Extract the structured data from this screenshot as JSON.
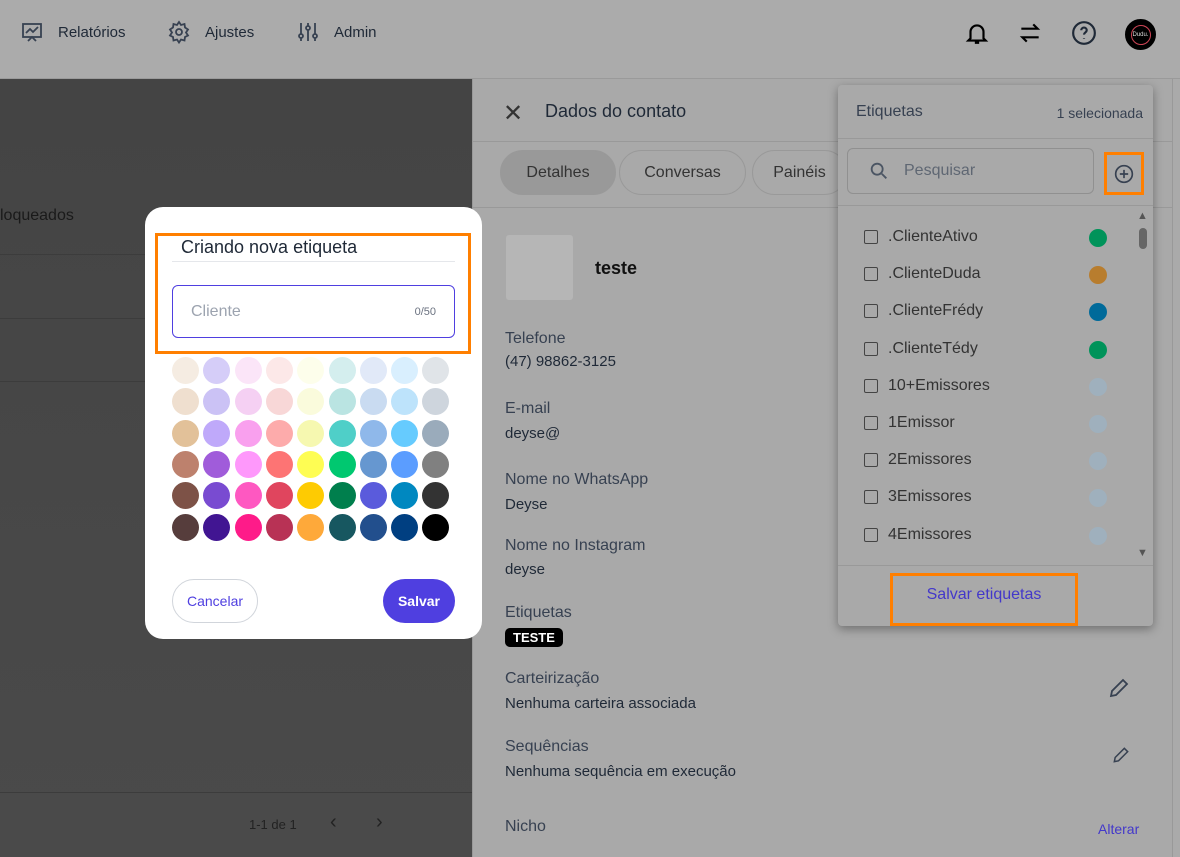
{
  "topbar": {
    "nav": [
      {
        "label": "Relatórios",
        "icon": "presentation-chart-icon"
      },
      {
        "label": "Ajustes",
        "icon": "gear-icon"
      },
      {
        "label": "Admin",
        "icon": "sliders-icon"
      }
    ],
    "avatar_text": "Dudu."
  },
  "background_list": {
    "column_text": "loqueados",
    "pagination": "1-1 de 1"
  },
  "contact_panel": {
    "title": "Dados do contato",
    "tabs": [
      {
        "label": "Detalhes",
        "active": true
      },
      {
        "label": "Conversas"
      },
      {
        "label": "Painéis"
      }
    ],
    "name": "teste",
    "fields": {
      "phone_label": "Telefone",
      "phone": "(47) 98862-3125",
      "email_label": "E-mail",
      "email": "deyse@",
      "whatsapp_label": "Nome no WhatsApp",
      "whatsapp": "Deyse",
      "instagram_label": "Nome no Instagram",
      "instagram": "deyse",
      "tags_label": "Etiquetas",
      "tag": "TESTE",
      "wallet_label": "Carteirização",
      "wallet": "Nenhuma carteira associada",
      "seq_label": "Sequências",
      "seq": "Nenhuma sequência em execução",
      "niche_label": "Nicho",
      "niche_action": "Alterar"
    }
  },
  "tags_dropdown": {
    "title": "Etiquetas",
    "selected_count": "1 selecionada",
    "search_placeholder": "Pesquisar",
    "save_label": "Salvar etiquetas",
    "items": [
      {
        "label": ".ClienteAtivo",
        "color": "#00935a"
      },
      {
        "label": ".ClienteDuda",
        "color": "#b87d2e"
      },
      {
        "label": ".ClienteFrédy",
        "color": "#006a9a"
      },
      {
        "label": ".ClienteTédy",
        "color": "#00935a"
      },
      {
        "label": "10+Emissores",
        "color": "#9fb0bd"
      },
      {
        "label": "1Emissor",
        "color": "#9fb0bd"
      },
      {
        "label": "2Emissores",
        "color": "#9fb0bd"
      },
      {
        "label": "3Emissores",
        "color": "#9fb0bd"
      },
      {
        "label": "4Emissores",
        "color": "#9fb0bd"
      }
    ]
  },
  "new_tag_modal": {
    "title": "Criando nova etiqueta",
    "input_placeholder": "Cliente",
    "input_value": "",
    "counter": "0/50",
    "cancel_label": "Cancelar",
    "save_label": "Salvar",
    "accent": "#4f3fe0",
    "palette": [
      [
        "#f5ece2",
        "#d5cdf8",
        "#fbe5f8",
        "#fce8e8",
        "#fdfeeb",
        "#d4eeee",
        "#e1e9f8",
        "#d9effe",
        "#e0e4e8"
      ],
      [
        "#efdfcf",
        "#cbc2f5",
        "#f5d0f3",
        "#f8d7d7",
        "#fafbdc",
        "#bae4e2",
        "#c9dbf1",
        "#bde3fb",
        "#ced5dd"
      ],
      [
        "#e2c199",
        "#bfa9fa",
        "#f9a0ee",
        "#fdabab",
        "#f6f8b0",
        "#4fcfc8",
        "#8fb8ea",
        "#66cbfe",
        "#9aabbb"
      ],
      [
        "#bd816d",
        "#a05cda",
        "#fe98fb",
        "#fd7474",
        "#fefd53",
        "#00c870",
        "#6697d0",
        "#5b9dff",
        "#808080"
      ],
      [
        "#7d5247",
        "#794bd1",
        "#fe58c1",
        "#e0455e",
        "#fecb02",
        "#007f4d",
        "#5a5bdc",
        "#0088c0",
        "#333333"
      ],
      [
        "#563d3c",
        "#411592",
        "#fe1b89",
        "#b83255",
        "#fea93a",
        "#175760",
        "#224f8d",
        "#003f81",
        "#000000"
      ]
    ]
  }
}
